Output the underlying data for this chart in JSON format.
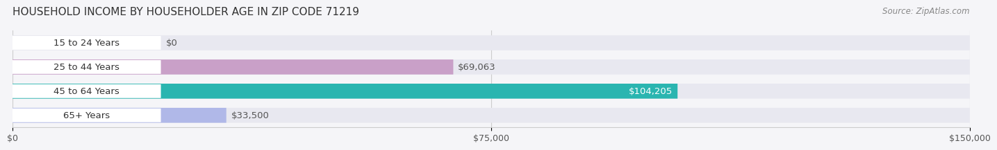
{
  "title": "HOUSEHOLD INCOME BY HOUSEHOLDER AGE IN ZIP CODE 71219",
  "source": "Source: ZipAtlas.com",
  "categories": [
    "15 to 24 Years",
    "25 to 44 Years",
    "45 to 64 Years",
    "65+ Years"
  ],
  "values": [
    0,
    69063,
    104205,
    33500
  ],
  "bar_colors": [
    "#a8c0e8",
    "#c9a0c8",
    "#2ab5b0",
    "#b0b8e8"
  ],
  "bar_bg_color": "#e8e8f0",
  "label_values": [
    "$0",
    "$69,063",
    "$104,205",
    "$33,500"
  ],
  "xlim": [
    0,
    150000
  ],
  "xticks": [
    0,
    75000,
    150000
  ],
  "xtick_labels": [
    "$0",
    "$75,000",
    "$150,000"
  ],
  "background_color": "#f5f5f8",
  "title_fontsize": 11,
  "source_fontsize": 8.5
}
